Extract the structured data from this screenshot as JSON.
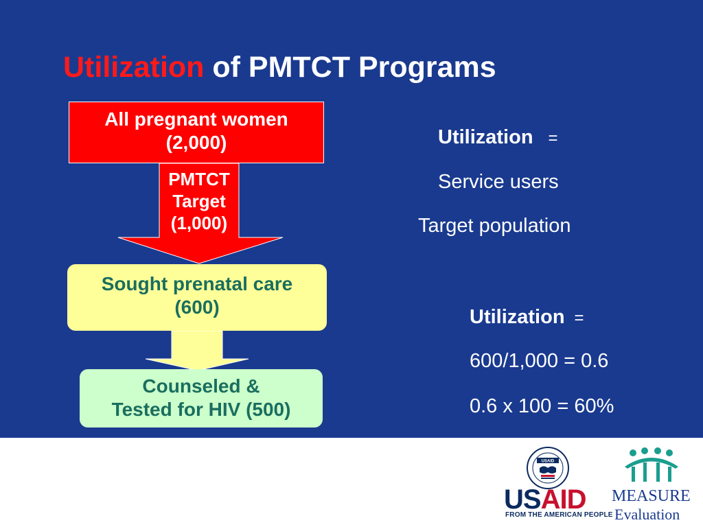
{
  "title": {
    "accent": "Utilization",
    "rest": " of PMTCT Programs"
  },
  "flow": {
    "box1": {
      "line1": "All pregnant women",
      "line2": "(2,000)"
    },
    "arrow": {
      "line1": "PMTCT",
      "line2": "Target",
      "line3": "(1,000)"
    },
    "box2": {
      "line1": "Sought prenatal care",
      "line2": "(600)"
    },
    "box3": {
      "line1": "Counseled &",
      "line2": "Tested for HIV (500)"
    }
  },
  "formula1": {
    "label": "Utilization",
    "eq": "=",
    "numerator": "Service users",
    "denominator": "Target population"
  },
  "formula2": {
    "label": "Utilization",
    "eq": "=",
    "line1": "600/1,000 = 0.6",
    "line2": "0.6 x 100 = 60%"
  },
  "logos": {
    "usaid": {
      "us": "US",
      "aid": "AID",
      "sub": "FROM THE AMERICAN PEOPLE",
      "seal_text": "USAID"
    },
    "measure": {
      "name": "MEASURE",
      "sub": "Evaluation"
    }
  },
  "colors": {
    "background": "#1a3a8f",
    "accent": "#ff1a1a",
    "box1": "#ff0000",
    "box2": "#ffff99",
    "box3": "#ccffcc",
    "box_text": "#1a6e5e",
    "measure_figures": "#1a9e8e"
  }
}
